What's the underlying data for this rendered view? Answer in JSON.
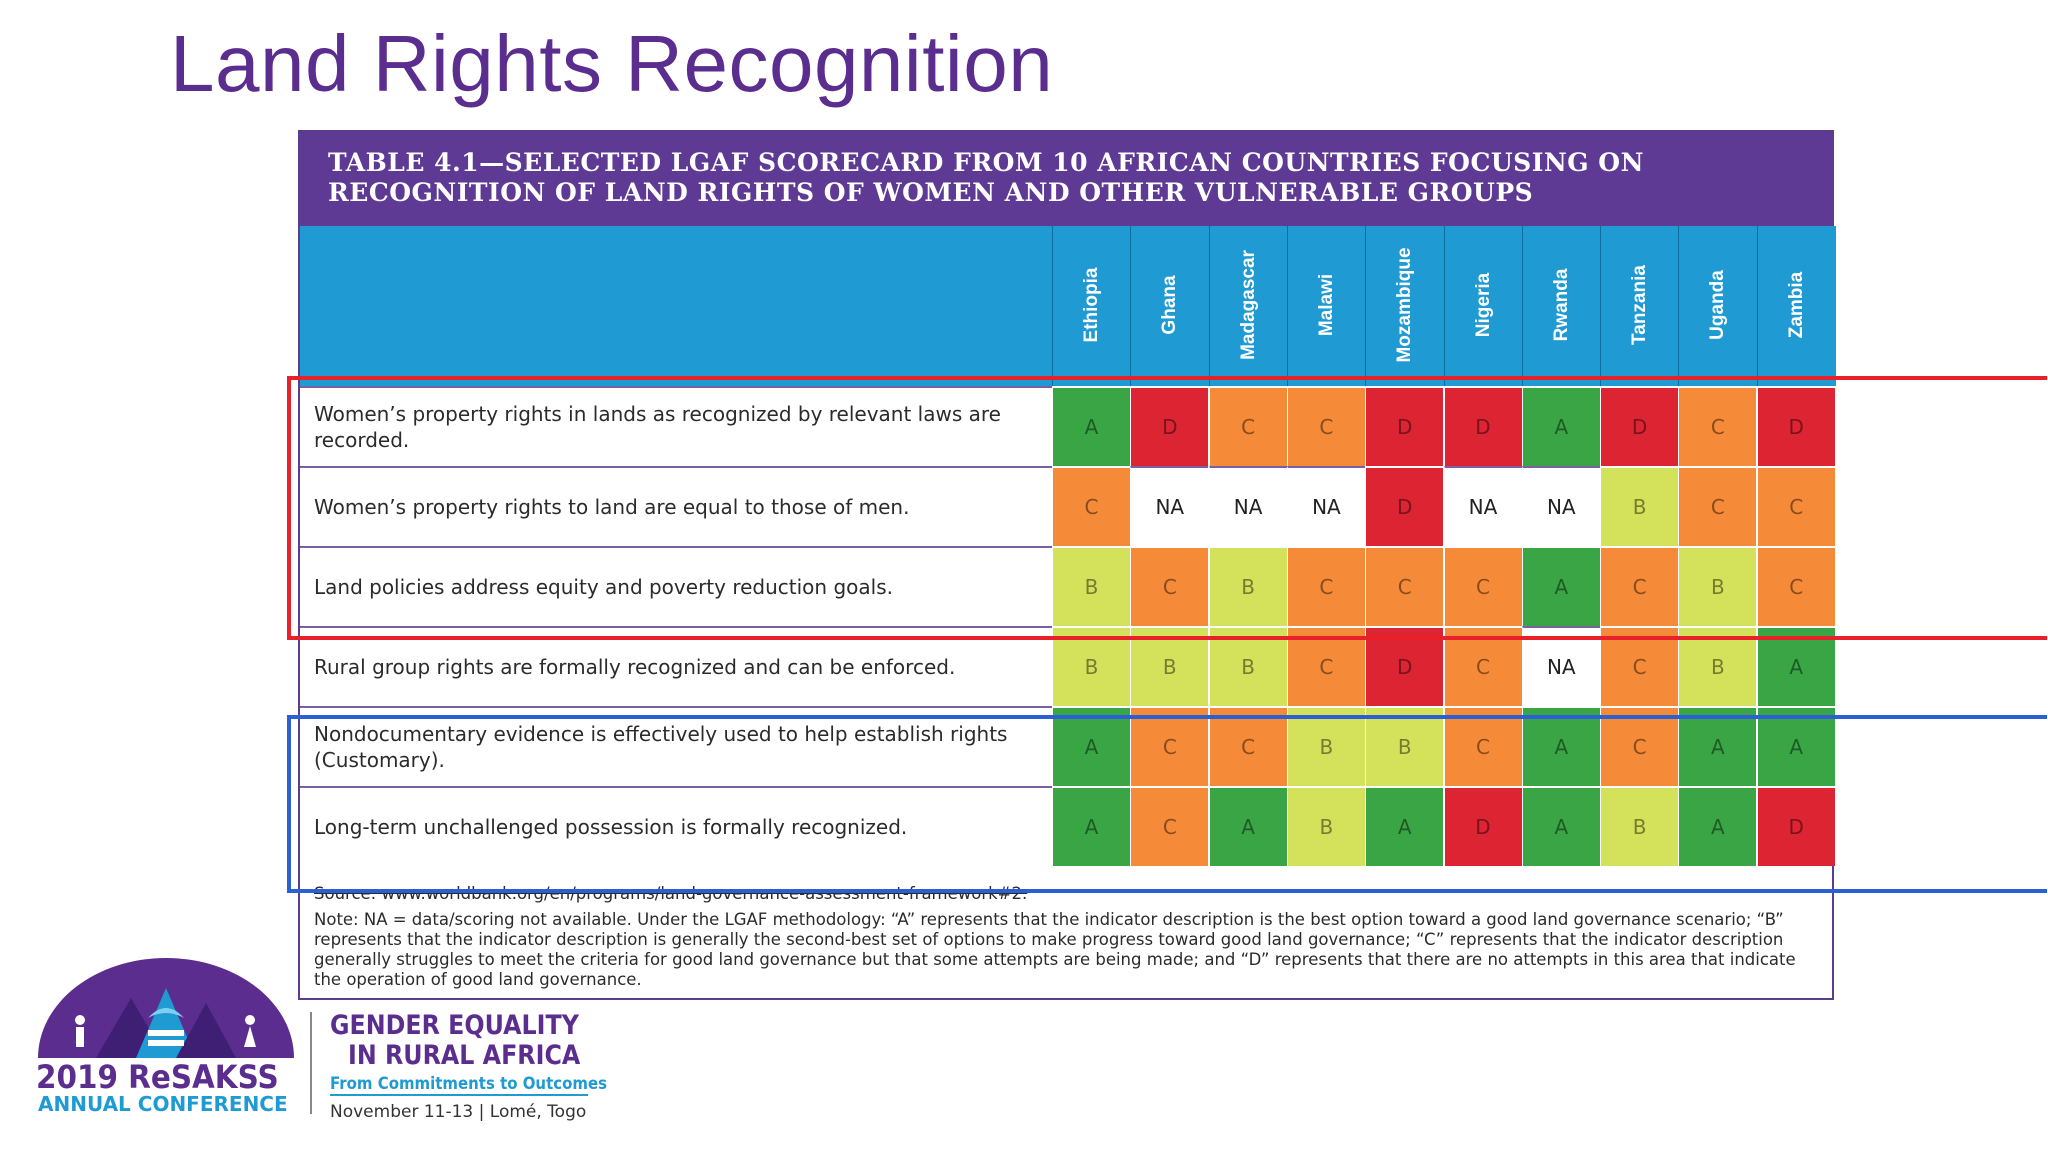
{
  "slide": {
    "title": "Land Rights Recognition"
  },
  "table": {
    "title_line1": "TABLE 4.1—SELECTED LGAF SCORECARD FROM 10 AFRICAN COUNTRIES FOCUSING ON",
    "title_line2": "RECOGNITION OF LAND RIGHTS OF WOMEN AND OTHER VULNERABLE GROUPS",
    "countries": [
      "Ethiopia",
      "Ghana",
      "Madagascar",
      "Malawi",
      "Mozambique",
      "Nigeria",
      "Rwanda",
      "Tanzania",
      "Uganda",
      "Zambia"
    ],
    "rows": [
      {
        "label": "Women’s property rights in lands as recognized by relevant laws are recorded.",
        "scores": [
          "A",
          "D",
          "C",
          "C",
          "D",
          "D",
          "A",
          "D",
          "C",
          "D"
        ]
      },
      {
        "label": "Women’s property rights to land are equal to those of men.",
        "scores": [
          "C",
          "NA",
          "NA",
          "NA",
          "D",
          "NA",
          "NA",
          "B",
          "C",
          "C"
        ]
      },
      {
        "label": "Land policies address equity and poverty reduction goals.",
        "scores": [
          "B",
          "C",
          "B",
          "C",
          "C",
          "C",
          "A",
          "C",
          "B",
          "C"
        ]
      },
      {
        "label": "Rural group rights are formally recognized and can be enforced.",
        "scores": [
          "B",
          "B",
          "B",
          "C",
          "D",
          "C",
          "NA",
          "C",
          "B",
          "A"
        ]
      },
      {
        "label": "Nondocumentary evidence is effectively used to help establish rights (Customary).",
        "scores": [
          "A",
          "C",
          "C",
          "B",
          "B",
          "C",
          "A",
          "C",
          "A",
          "A"
        ]
      },
      {
        "label": "Long-term unchallenged possession is formally recognized.",
        "scores": [
          "A",
          "C",
          "A",
          "B",
          "A",
          "D",
          "A",
          "B",
          "A",
          "D"
        ]
      }
    ],
    "source": "Source: www.worldbank.org/en/programs/land-governance-assessment-framework#2.",
    "note": "Note: NA = data/scoring not available. Under the LGAF methodology: “A” represents that the indicator description is the best option toward a good land governance scenario; “B” represents that the indicator description is generally the second-best set of options to make progress toward good land governance; “C” represents that the indicator description generally struggles to meet the criteria for good land governance but that some attempts are being made; and “D” represents that there are no attempts in this area that indicate the operation of good land governance."
  },
  "score_colors": {
    "A": "#3aa545",
    "B": "#d4e25b",
    "C": "#f58a38",
    "D": "#dc2433",
    "NA": "#ffffff"
  },
  "branding": {
    "logo_year": "2019 ReSAKSS",
    "logo_conference": "ANNUAL CONFERENCE",
    "headline_1": "GENDER EQUALITY",
    "headline_2": "IN RURAL AFRICA",
    "tagline": "From Commitments to Outcomes",
    "date_place": "November 11-13   |   Lomé, Togo"
  }
}
